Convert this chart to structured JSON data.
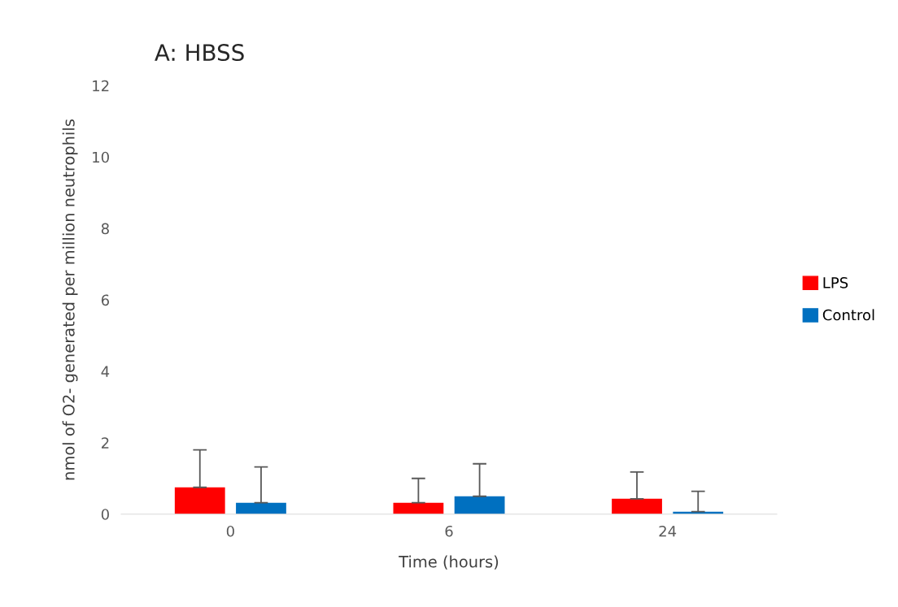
{
  "chart_data": {
    "type": "bar",
    "title": "A: HBSS",
    "xlabel": "Time (hours)",
    "ylabel": "nmol of O2- generated per million neutrophils",
    "categories": [
      "0",
      "6",
      "24"
    ],
    "series": [
      {
        "name": "LPS",
        "color": "#ff0000",
        "values": [
          0.75,
          0.32,
          0.43
        ],
        "errors": [
          [
            0.75,
            1.8
          ],
          [
            0.32,
            1.0
          ],
          [
            0.43,
            1.18
          ]
        ]
      },
      {
        "name": "Control",
        "color": "#0070c0",
        "values": [
          0.32,
          0.5,
          0.07
        ],
        "errors": [
          [
            0.32,
            1.32
          ],
          [
            0.5,
            1.41
          ],
          [
            0.07,
            0.64
          ]
        ]
      }
    ],
    "ylim": [
      0,
      12
    ],
    "yticks": [
      0,
      2,
      4,
      6,
      8,
      10,
      12
    ],
    "grid": false,
    "legend": "right"
  }
}
